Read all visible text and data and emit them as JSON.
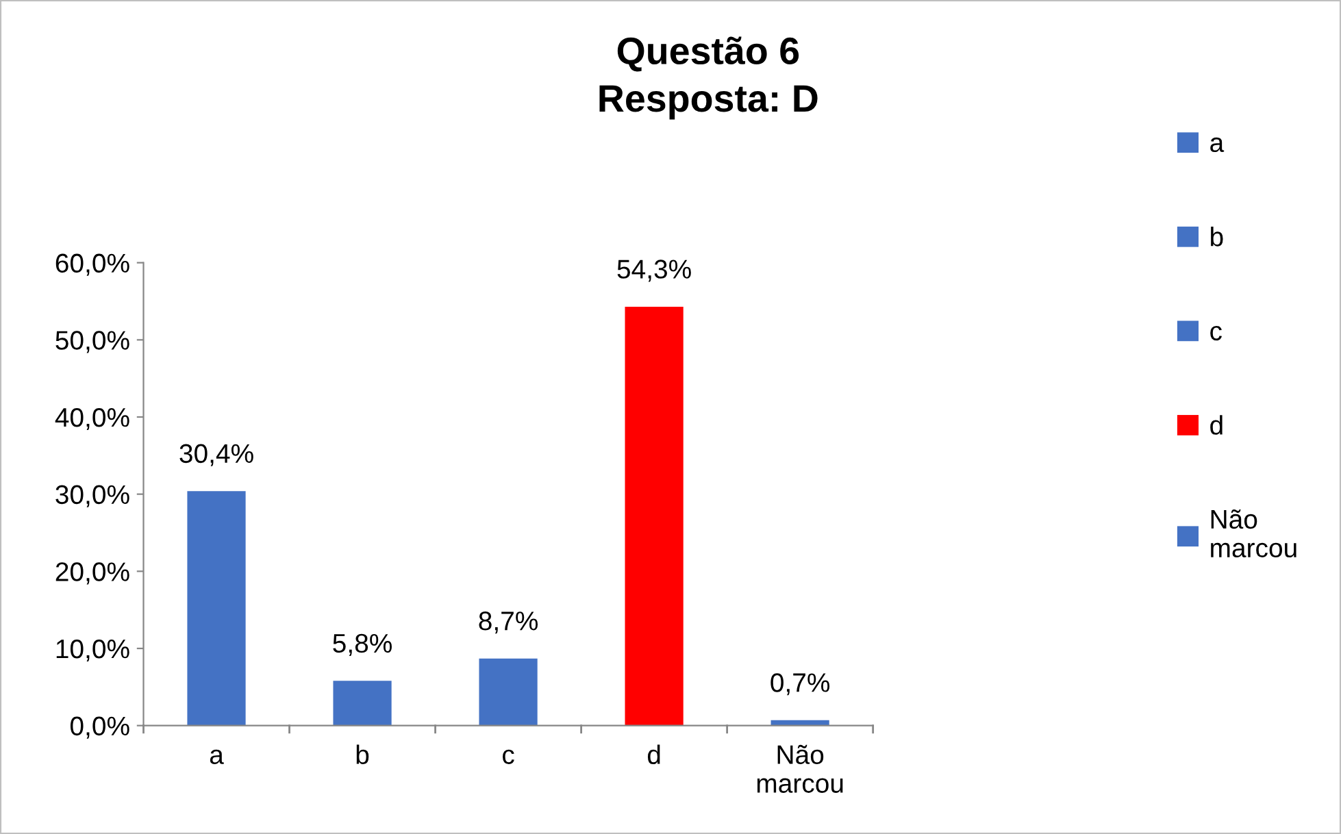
{
  "chart_data": {
    "type": "bar",
    "title": "Questão 6",
    "subtitle": "Resposta: D",
    "categories": [
      "a",
      "b",
      "c",
      "d",
      "Não marcou"
    ],
    "series": [
      {
        "name": "a",
        "color": "#4472c4",
        "values": [
          30.4,
          null,
          null,
          null,
          null
        ],
        "value_labels": [
          "30,4%",
          null,
          null,
          null,
          null
        ]
      },
      {
        "name": "b",
        "color": "#4472c4",
        "values": [
          null,
          5.8,
          null,
          null,
          null
        ],
        "value_labels": [
          null,
          "5,8%",
          null,
          null,
          null
        ]
      },
      {
        "name": "c",
        "color": "#4472c4",
        "values": [
          null,
          null,
          8.7,
          null,
          null
        ],
        "value_labels": [
          null,
          null,
          "8,7%",
          null,
          null
        ]
      },
      {
        "name": "d",
        "color": "#ff0000",
        "values": [
          null,
          null,
          null,
          54.3,
          null
        ],
        "value_labels": [
          null,
          null,
          null,
          "54,3%",
          null
        ]
      },
      {
        "name": "Não marcou",
        "color": "#4472c4",
        "values": [
          null,
          null,
          null,
          null,
          0.7
        ],
        "value_labels": [
          null,
          null,
          null,
          null,
          "0,7%"
        ]
      }
    ],
    "ylim": [
      0,
      60
    ],
    "yticks": [
      {
        "value": 0,
        "label": "0,0%"
      },
      {
        "value": 10,
        "label": "10,0%"
      },
      {
        "value": 20,
        "label": "20,0%"
      },
      {
        "value": 30,
        "label": "30,0%"
      },
      {
        "value": 40,
        "label": "40,0%"
      },
      {
        "value": 50,
        "label": "50,0%"
      },
      {
        "value": 60,
        "label": "60,0%"
      }
    ],
    "grid": false,
    "legend": "right"
  }
}
